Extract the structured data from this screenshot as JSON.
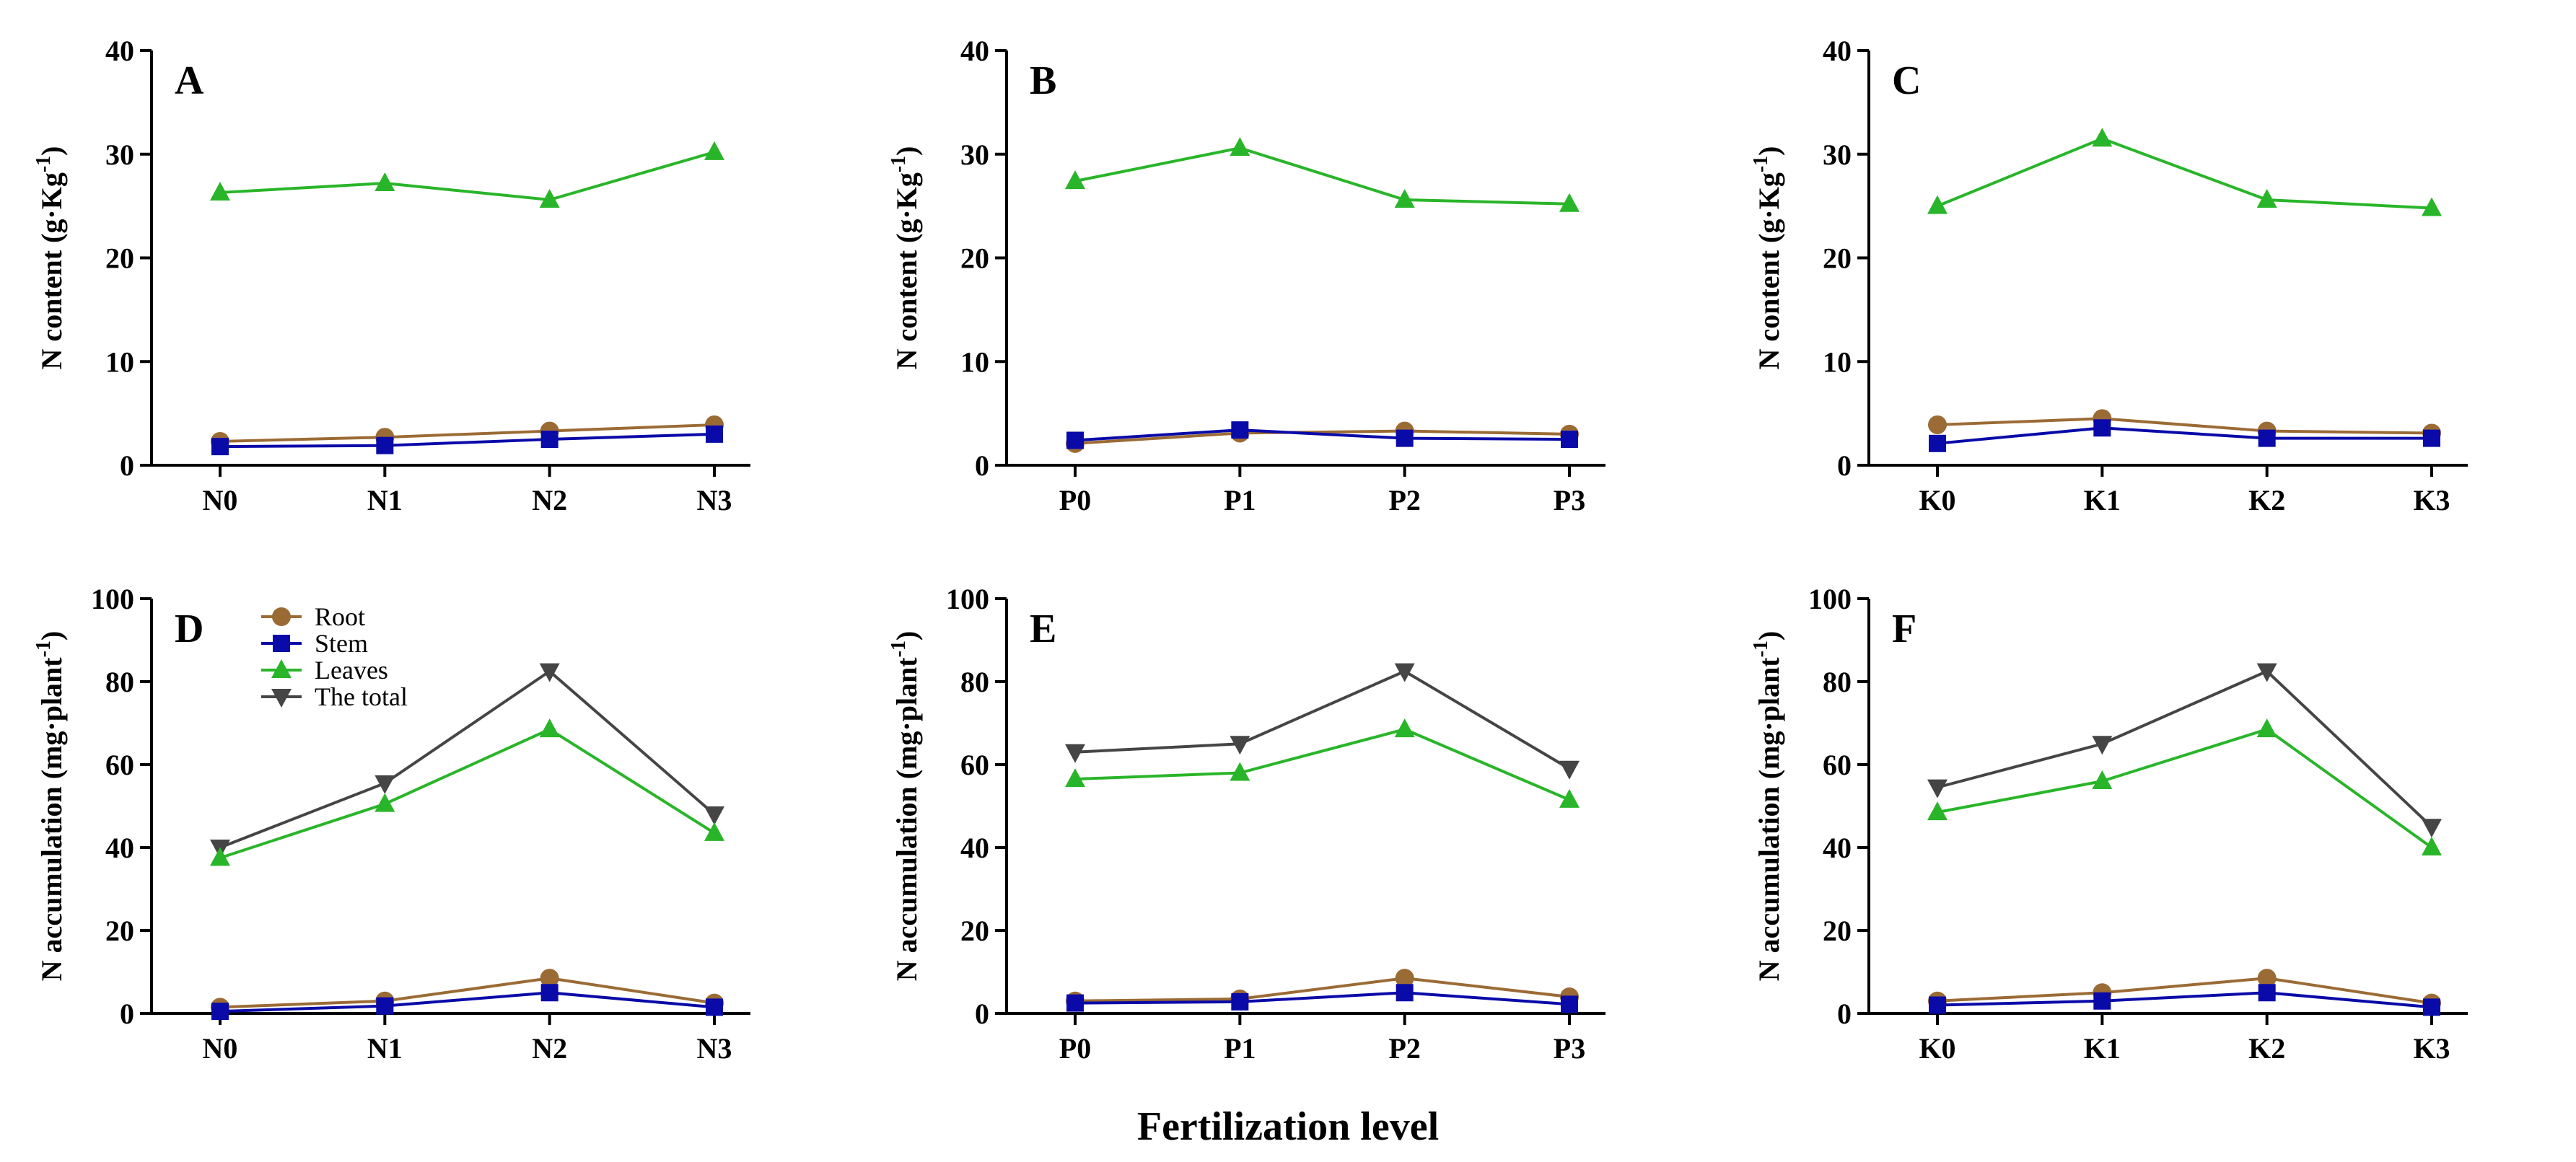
{
  "figure": {
    "x_title": "Fertilization level"
  },
  "legend": {
    "items": [
      {
        "name": "Root",
        "color": "#9b6b35",
        "marker": "circle"
      },
      {
        "name": "Stem",
        "color": "#0a0aa8",
        "marker": "square"
      },
      {
        "name": "Leaves",
        "color": "#29b529",
        "marker": "triangle-up"
      },
      {
        "name": "The total",
        "color": "#454545",
        "marker": "triangle-down"
      }
    ]
  },
  "chart_data": [
    {
      "panel": "A",
      "type": "line",
      "ylabel_main": "N content (g·Kg",
      "ylabel_sup": "-1",
      "ylabel_end": ")",
      "ylim": [
        0,
        40
      ],
      "yticks": [
        0,
        10,
        20,
        30,
        40
      ],
      "categories": [
        "N0",
        "N1",
        "N2",
        "N3"
      ],
      "series": [
        {
          "name": "Root",
          "values": [
            2.3,
            2.7,
            3.3,
            3.9
          ]
        },
        {
          "name": "Stem",
          "values": [
            1.8,
            1.9,
            2.5,
            3.0
          ]
        },
        {
          "name": "Leaves",
          "values": [
            26.3,
            27.2,
            25.6,
            30.2
          ]
        }
      ]
    },
    {
      "panel": "B",
      "type": "line",
      "ylabel_main": "N content (g·Kg",
      "ylabel_sup": "-1",
      "ylabel_end": ")",
      "ylim": [
        0,
        40
      ],
      "yticks": [
        0,
        10,
        20,
        30,
        40
      ],
      "categories": [
        "P0",
        "P1",
        "P2",
        "P3"
      ],
      "series": [
        {
          "name": "Root",
          "values": [
            2.1,
            3.1,
            3.3,
            3.0
          ]
        },
        {
          "name": "Stem",
          "values": [
            2.4,
            3.4,
            2.6,
            2.5
          ]
        },
        {
          "name": "Leaves",
          "values": [
            27.4,
            30.6,
            25.6,
            25.2
          ]
        }
      ]
    },
    {
      "panel": "C",
      "type": "line",
      "ylabel_main": "N content (g·Kg",
      "ylabel_sup": "-1",
      "ylabel_end": ")",
      "ylim": [
        0,
        40
      ],
      "yticks": [
        0,
        10,
        20,
        30,
        40
      ],
      "categories": [
        "K0",
        "K1",
        "K2",
        "K3"
      ],
      "series": [
        {
          "name": "Root",
          "values": [
            3.9,
            4.5,
            3.3,
            3.1
          ]
        },
        {
          "name": "Stem",
          "values": [
            2.1,
            3.6,
            2.6,
            2.6
          ]
        },
        {
          "name": "Leaves",
          "values": [
            25.0,
            31.5,
            25.6,
            24.8
          ]
        }
      ]
    },
    {
      "panel": "D",
      "type": "line",
      "ylabel_main": "N accumulation (mg·plant",
      "ylabel_sup": "-1",
      "ylabel_end": ")",
      "ylim": [
        0,
        100
      ],
      "yticks": [
        0,
        20,
        40,
        60,
        80,
        100
      ],
      "categories": [
        "N0",
        "N1",
        "N2",
        "N3"
      ],
      "series": [
        {
          "name": "Root",
          "values": [
            1.5,
            3.0,
            8.5,
            2.5
          ]
        },
        {
          "name": "Stem",
          "values": [
            0.5,
            1.8,
            5.0,
            1.5
          ]
        },
        {
          "name": "Leaves",
          "values": [
            37.5,
            50.5,
            68.5,
            43.5
          ]
        },
        {
          "name": "The total",
          "values": [
            40.0,
            55.5,
            82.5,
            48.0
          ]
        }
      ]
    },
    {
      "panel": "E",
      "type": "line",
      "ylabel_main": "N accumulation (mg·plant",
      "ylabel_sup": "-1",
      "ylabel_end": ")",
      "ylim": [
        0,
        100
      ],
      "yticks": [
        0,
        20,
        40,
        60,
        80,
        100
      ],
      "categories": [
        "P0",
        "P1",
        "P2",
        "P3"
      ],
      "series": [
        {
          "name": "Root",
          "values": [
            3.0,
            3.5,
            8.5,
            4.0
          ]
        },
        {
          "name": "Stem",
          "values": [
            2.5,
            2.8,
            5.0,
            2.2
          ]
        },
        {
          "name": "Leaves",
          "values": [
            56.5,
            58.0,
            68.5,
            51.5
          ]
        },
        {
          "name": "The total",
          "values": [
            63.0,
            65.0,
            82.5,
            59.0
          ]
        }
      ]
    },
    {
      "panel": "F",
      "type": "line",
      "ylabel_main": "N accumulation (mg·plant",
      "ylabel_sup": "-1",
      "ylabel_end": ")",
      "ylim": [
        0,
        100
      ],
      "yticks": [
        0,
        20,
        40,
        60,
        80,
        100
      ],
      "categories": [
        "K0",
        "K1",
        "K2",
        "K3"
      ],
      "series": [
        {
          "name": "Root",
          "values": [
            3.0,
            5.0,
            8.5,
            2.5
          ]
        },
        {
          "name": "Stem",
          "values": [
            2.0,
            3.0,
            5.0,
            1.5
          ]
        },
        {
          "name": "Leaves",
          "values": [
            48.5,
            56.0,
            68.5,
            40.0
          ]
        },
        {
          "name": "The total",
          "values": [
            54.5,
            65.0,
            82.5,
            45.0
          ]
        }
      ]
    }
  ]
}
